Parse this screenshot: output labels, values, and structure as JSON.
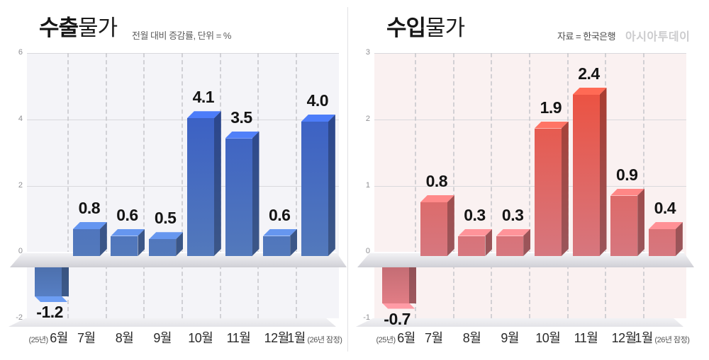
{
  "chart_data": [
    {
      "type": "bar",
      "title": "수출물가",
      "title_bold": "수출",
      "title_light": "물가",
      "subtitle": "전월 대비 증감률, 단위 = %",
      "source": "",
      "watermark": "",
      "categories": [
        "6월",
        "7월",
        "8월",
        "9월",
        "10월",
        "11월",
        "12월",
        "1월"
      ],
      "category_prefix": "(25년)",
      "category_suffix": "(26년 잠정)",
      "values": [
        -1.2,
        0.8,
        0.6,
        0.5,
        4.1,
        3.5,
        0.6,
        4.0
      ],
      "value_labels": [
        "-1.2",
        "0.8",
        "0.6",
        "0.5",
        "4.1",
        "3.5",
        "0.6",
        "4.0"
      ],
      "ylim": [
        -2,
        6
      ],
      "yticks": [
        6,
        4,
        2,
        0,
        -2
      ],
      "grid": "horizontal-solid-and-vertical-dashed",
      "legend": "none",
      "bar_color_top": "#3156c9",
      "bar_color_bottom": "#5379bb",
      "plot_bg": "#f4f4f8"
    },
    {
      "type": "bar",
      "title": "수입물가",
      "title_bold": "수입",
      "title_light": "물가",
      "subtitle": "",
      "source": "자료 = 한국은행",
      "watermark": "아시아투데이",
      "categories": [
        "6월",
        "7월",
        "8월",
        "9월",
        "10월",
        "11월",
        "12월",
        "1월"
      ],
      "category_prefix": "(25년)",
      "category_suffix": "(26년 잠정)",
      "values": [
        -0.7,
        0.8,
        0.3,
        0.3,
        1.9,
        2.4,
        0.9,
        0.4
      ],
      "value_labels": [
        "-0.7",
        "0.8",
        "0.3",
        "0.3",
        "1.9",
        "2.4",
        "0.9",
        "0.4"
      ],
      "ylim": [
        -1,
        3
      ],
      "yticks": [
        3,
        2,
        1,
        0,
        -1
      ],
      "grid": "horizontal-solid-and-vertical-dashed",
      "legend": "none",
      "bar_color_top": "#f04a33",
      "bar_color_bottom": "#d6777f",
      "plot_bg": "#faf1f1"
    }
  ],
  "ui": {
    "floor_color_light": "#f2f2f5",
    "floor_color_dark": "#d4d4da",
    "base_color_light": "#f2f2f5",
    "base_color_dark": "#e3e3e7",
    "gridline_color": "#d9d9dd",
    "dashed_color": "#c9c9ce"
  }
}
